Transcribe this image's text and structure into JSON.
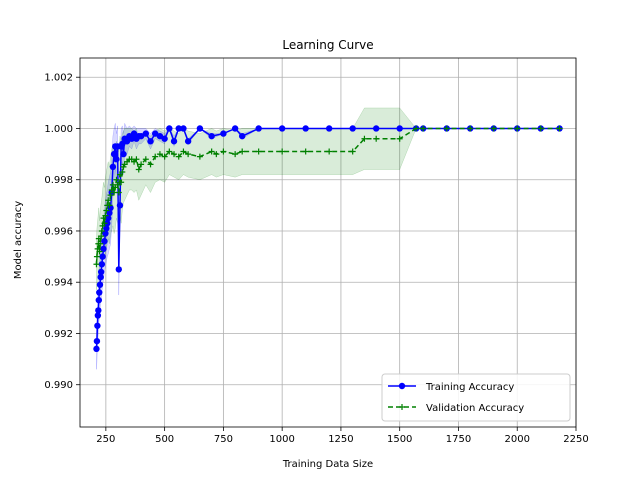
{
  "chart_data": {
    "type": "line",
    "title": "Learning Curve",
    "xlabel": "Training Data Size",
    "ylabel": "Model accuracy",
    "xlim": [
      140,
      2250
    ],
    "ylim": [
      0.98835,
      1.00275
    ],
    "xticks": [
      250,
      500,
      750,
      1000,
      1250,
      1500,
      1750,
      2000,
      2250
    ],
    "xtick_labels": [
      "250",
      "500",
      "750",
      "1000",
      "1250",
      "1500",
      "1750",
      "2000",
      "2250"
    ],
    "yticks": [
      0.99,
      0.992,
      0.994,
      0.996,
      0.998,
      1.0,
      1.002
    ],
    "ytick_labels": [
      "0.990",
      "0.992",
      "0.994",
      "0.996",
      "0.998",
      "1.000",
      "1.002"
    ],
    "grid": true,
    "legend_position": "bottom-right",
    "series": [
      {
        "name": "Training Accuracy",
        "color": "#0000ff",
        "marker": "circle",
        "line_style": "solid",
        "band_color": "#0000ff",
        "x": [
          210,
          212,
          214,
          216,
          218,
          220,
          222,
          225,
          228,
          230,
          233,
          236,
          240,
          244,
          248,
          252,
          256,
          260,
          265,
          270,
          275,
          280,
          285,
          290,
          295,
          300,
          305,
          310,
          315,
          320,
          325,
          330,
          340,
          350,
          360,
          370,
          380,
          390,
          400,
          420,
          440,
          460,
          480,
          500,
          520,
          540,
          560,
          580,
          600,
          650,
          700,
          750,
          800,
          830,
          900,
          1000,
          1100,
          1200,
          1300,
          1400,
          1500,
          1570,
          1600,
          1700,
          1800,
          1900,
          2000,
          2100,
          2180
        ],
        "y": [
          0.9914,
          0.9917,
          0.9923,
          0.9927,
          0.9929,
          0.9933,
          0.9936,
          0.9939,
          0.9942,
          0.9944,
          0.9947,
          0.995,
          0.9953,
          0.9956,
          0.9959,
          0.9961,
          0.9963,
          0.9965,
          0.9967,
          0.9969,
          0.9975,
          0.9985,
          0.999,
          0.9993,
          0.9988,
          0.9993,
          0.9945,
          0.997,
          0.9993,
          0.9994,
          0.999,
          0.9996,
          0.9995,
          0.9997,
          0.9996,
          0.9998,
          0.9996,
          0.9997,
          0.9997,
          0.9998,
          0.9995,
          0.9998,
          0.9997,
          0.9996,
          1.0,
          0.9995,
          1.0,
          1.0,
          0.9995,
          1.0,
          0.9997,
          0.9998,
          1.0,
          0.9997,
          1.0,
          1.0,
          1.0,
          1.0,
          1.0,
          1.0,
          1.0,
          1.0,
          1.0,
          1.0,
          1.0,
          1.0,
          1.0,
          1.0,
          1.0
        ],
        "std": [
          0.0008,
          0.0008,
          0.0008,
          0.0009,
          0.0009,
          0.0009,
          0.001,
          0.001,
          0.001,
          0.0011,
          0.0011,
          0.0011,
          0.0012,
          0.0012,
          0.0013,
          0.0013,
          0.0013,
          0.0014,
          0.0014,
          0.0014,
          0.0013,
          0.0012,
          0.001,
          0.0009,
          0.001,
          0.0008,
          0.001,
          0.0009,
          0.0007,
          0.0007,
          0.0008,
          0.0006,
          0.0005,
          0.0004,
          0.0004,
          0.0003,
          0.0004,
          0.0003,
          0.0003,
          0.0002,
          0.0003,
          0.0002,
          0.0002,
          0.0002,
          0.0,
          0.0002,
          0.0,
          0.0,
          0.0001,
          0.0,
          0.0001,
          0.0,
          0.0,
          0.0001,
          0.0,
          0.0,
          0.0,
          0.0,
          0.0,
          0.0,
          0.0,
          0.0,
          0.0,
          0.0,
          0.0,
          0.0,
          0.0,
          0.0,
          0.0
        ]
      },
      {
        "name": "Validation Accuracy",
        "color": "#008000",
        "marker": "plus",
        "line_style": "dashed",
        "band_color": "#008000",
        "x": [
          210,
          212,
          215,
          218,
          220,
          223,
          226,
          230,
          233,
          236,
          240,
          244,
          248,
          252,
          256,
          260,
          265,
          270,
          275,
          280,
          285,
          290,
          295,
          300,
          305,
          310,
          315,
          320,
          325,
          330,
          340,
          350,
          360,
          370,
          380,
          390,
          400,
          420,
          440,
          460,
          480,
          500,
          520,
          540,
          560,
          580,
          600,
          650,
          700,
          720,
          750,
          800,
          830,
          900,
          1000,
          1100,
          1200,
          1300,
          1350,
          1400,
          1500,
          1570,
          1600,
          1700,
          1800,
          1900,
          2000,
          2100,
          2180
        ],
        "y": [
          0.9947,
          0.995,
          0.9953,
          0.9955,
          0.9957,
          0.9952,
          0.9955,
          0.9958,
          0.996,
          0.9962,
          0.9965,
          0.9963,
          0.9966,
          0.9968,
          0.997,
          0.9972,
          0.997,
          0.9974,
          0.9976,
          0.9978,
          0.9975,
          0.9977,
          0.998,
          0.9978,
          0.9975,
          0.9982,
          0.9979,
          0.9983,
          0.9985,
          0.9986,
          0.9987,
          0.9988,
          0.9988,
          0.9987,
          0.9988,
          0.9984,
          0.9986,
          0.9988,
          0.9986,
          0.9989,
          0.999,
          0.9989,
          0.9991,
          0.999,
          0.9989,
          0.9991,
          0.999,
          0.9989,
          0.9991,
          0.999,
          0.9991,
          0.999,
          0.9991,
          0.9991,
          0.9991,
          0.9991,
          0.9991,
          0.9991,
          0.9996,
          0.9996,
          0.9996,
          1.0,
          1.0,
          1.0,
          1.0,
          1.0,
          1.0,
          1.0,
          1.0
        ],
        "std": [
          0.001,
          0.0011,
          0.0011,
          0.0012,
          0.0012,
          0.0012,
          0.0013,
          0.0013,
          0.0013,
          0.0014,
          0.0014,
          0.0014,
          0.0015,
          0.0015,
          0.0015,
          0.0015,
          0.0015,
          0.0015,
          0.0016,
          0.0016,
          0.0016,
          0.0016,
          0.0015,
          0.0015,
          0.0016,
          0.0015,
          0.0016,
          0.0015,
          0.0014,
          0.0014,
          0.0013,
          0.0012,
          0.0012,
          0.0012,
          0.0012,
          0.0012,
          0.0012,
          0.001,
          0.0011,
          0.001,
          0.001,
          0.001,
          0.0009,
          0.0009,
          0.0009,
          0.0009,
          0.0009,
          0.0009,
          0.0009,
          0.0009,
          0.0009,
          0.0009,
          0.0009,
          0.0009,
          0.0009,
          0.0009,
          0.0009,
          0.0009,
          0.0012,
          0.0012,
          0.0012,
          0.0,
          0.0,
          0.0,
          0.0,
          0.0,
          0.0,
          0.0,
          0.0
        ]
      }
    ]
  }
}
